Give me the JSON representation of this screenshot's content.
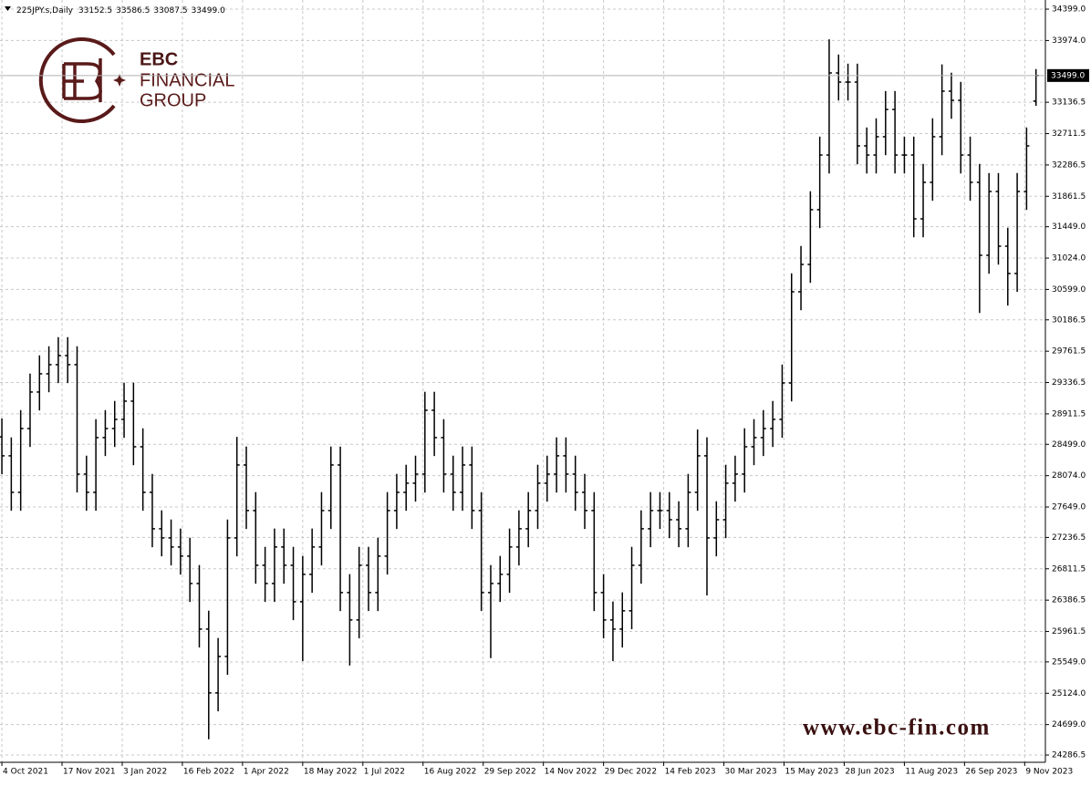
{
  "chart_data": {
    "type": "ohlc",
    "title": "225JPY.s,Daily",
    "color": "#000000",
    "grid": true,
    "x": [
      0,
      5,
      10,
      15,
      20,
      25,
      30,
      35,
      40,
      45,
      50,
      55,
      60,
      65,
      70,
      75,
      80,
      85,
      90,
      95,
      100,
      105,
      110,
      115,
      120,
      125,
      130,
      135,
      140,
      145,
      150,
      155,
      160,
      165,
      170,
      175,
      180,
      185,
      190,
      195,
      200,
      205,
      210,
      215,
      220,
      225,
      230,
      235,
      240,
      245,
      250,
      255,
      260,
      265,
      270,
      275,
      280,
      285,
      290,
      295,
      300,
      305,
      310,
      315,
      320,
      325,
      330,
      335,
      340,
      345,
      350,
      355,
      360,
      365,
      370,
      375,
      380,
      385,
      390,
      395,
      400,
      405,
      410,
      415,
      420,
      425,
      430,
      435,
      440,
      445,
      450,
      455,
      460,
      465,
      470,
      475,
      480,
      485,
      490,
      495,
      500,
      505,
      510,
      515,
      520,
      525,
      530,
      535,
      540,
      545,
      550
    ],
    "open": [
      28600,
      28343,
      27848,
      28713,
      29208,
      29455,
      29579,
      29702,
      29579,
      28095,
      27848,
      28590,
      28713,
      28837,
      29084,
      28466,
      27848,
      27354,
      27230,
      27107,
      26983,
      26612,
      25994,
      25129,
      25623,
      27230,
      28219,
      27601,
      26859,
      26612,
      27107,
      26859,
      26365,
      26736,
      27107,
      27601,
      28219,
      26489,
      26118,
      26859,
      26489,
      26983,
      27601,
      27848,
      27972,
      28095,
      28961,
      28590,
      28095,
      27848,
      28219,
      27601,
      26489,
      26612,
      26736,
      27107,
      27354,
      27601,
      27972,
      28095,
      28343,
      28095,
      27848,
      27601,
      26489,
      26118,
      25994,
      26242,
      26859,
      27354,
      27601,
      27601,
      27477,
      27354,
      27848,
      28343,
      27230,
      27477,
      27972,
      28095,
      28466,
      28590,
      28713,
      28837,
      29331,
      30567,
      30938,
      31680,
      32421,
      33534,
      33410,
      33410,
      32545,
      32421,
      32669,
      33039,
      32421,
      32421,
      31556,
      32051,
      32669,
      33287,
      33163,
      32421,
      32051,
      31062,
      31927,
      31185,
      30815,
      31927,
      33152.5
    ],
    "high": [
      28850,
      28593,
      28963,
      29458,
      29705,
      29829,
      29952,
      29952,
      29829,
      28345,
      28840,
      28963,
      29087,
      29334,
      29334,
      28716,
      28098,
      27604,
      27480,
      27357,
      27233,
      26862,
      26244,
      25873,
      27480,
      28600,
      28469,
      27851,
      27109,
      27357,
      27357,
      27109,
      26986,
      27357,
      27851,
      28469,
      28469,
      26739,
      27109,
      27109,
      27233,
      27851,
      28098,
      28222,
      28345,
      29211,
      29211,
      28840,
      28345,
      28469,
      28469,
      27851,
      26862,
      26986,
      27357,
      27604,
      27851,
      28222,
      28345,
      28593,
      28593,
      28345,
      28098,
      27851,
      26739,
      26368,
      26492,
      27109,
      27604,
      27851,
      27851,
      27851,
      27727,
      28098,
      28700,
      28593,
      27727,
      28222,
      28345,
      28716,
      28840,
      28963,
      29087,
      29581,
      30817,
      31188,
      31930,
      32671,
      33990,
      33784,
      33660,
      33660,
      32795,
      32919,
      33289,
      33289,
      32671,
      32671,
      32301,
      32919,
      33650,
      33537,
      33413,
      32671,
      32301,
      32177,
      32177,
      31435,
      32177,
      32795,
      33586.5
    ],
    "low": [
      28093,
      27598,
      27598,
      28463,
      28958,
      29205,
      29329,
      29329,
      27845,
      27598,
      27598,
      28340,
      28463,
      28587,
      28216,
      27598,
      27104,
      26980,
      26857,
      26733,
      26362,
      25744,
      24500,
      24879,
      25373,
      26980,
      27351,
      26609,
      26362,
      26362,
      26609,
      26115,
      25560,
      26486,
      26857,
      27351,
      26239,
      25500,
      25868,
      26239,
      26239,
      26733,
      27351,
      27598,
      27722,
      27845,
      28340,
      27845,
      27598,
      27598,
      27351,
      26239,
      25600,
      26362,
      26486,
      26857,
      27104,
      27351,
      27722,
      27845,
      27845,
      27598,
      27351,
      26239,
      25868,
      25560,
      25744,
      25992,
      26609,
      27104,
      27351,
      27227,
      27104,
      27104,
      27598,
      26450,
      26980,
      27227,
      27722,
      27845,
      28216,
      28340,
      28463,
      28587,
      29081,
      30317,
      30688,
      31430,
      32171,
      33160,
      33160,
      32295,
      32171,
      32171,
      32419,
      32171,
      32171,
      31306,
      31306,
      31801,
      32419,
      32913,
      32171,
      31801,
      30280,
      30812,
      30935,
      30380,
      30565,
      31677,
      33087.5
    ],
    "close": [
      28343,
      27848,
      28713,
      29208,
      29455,
      29579,
      29702,
      29579,
      28095,
      27848,
      28590,
      28713,
      28837,
      29084,
      28466,
      27848,
      27354,
      27230,
      27107,
      26983,
      26612,
      25994,
      25129,
      25623,
      27230,
      28219,
      27601,
      26859,
      26612,
      27107,
      26859,
      26365,
      26736,
      27107,
      27601,
      28219,
      26489,
      26118,
      26859,
      26489,
      26983,
      27601,
      27848,
      27972,
      28095,
      28961,
      28590,
      28095,
      27848,
      28219,
      27601,
      26489,
      26612,
      26736,
      27107,
      27354,
      27601,
      27972,
      28095,
      28343,
      28095,
      27848,
      27601,
      26489,
      26118,
      25994,
      26242,
      26859,
      27354,
      27601,
      27601,
      27477,
      27354,
      27848,
      28343,
      27230,
      27477,
      27972,
      28095,
      28466,
      28590,
      28713,
      28837,
      29331,
      30567,
      30938,
      31680,
      32421,
      33534,
      33410,
      33410,
      32545,
      32421,
      32669,
      33039,
      32421,
      32421,
      31556,
      32051,
      32669,
      33287,
      33163,
      32421,
      32051,
      31062,
      31927,
      31185,
      30815,
      31927,
      32545,
      33499
    ],
    "xlim": [
      -1,
      555
    ],
    "xticks": [
      {
        "value": 0,
        "label": "4 Oct 2021"
      },
      {
        "value": 32,
        "label": "17 Nov 2021"
      },
      {
        "value": 64,
        "label": "3 Jan 2022"
      },
      {
        "value": 96,
        "label": "16 Feb 2022"
      },
      {
        "value": 128,
        "label": "1 Apr 2022"
      },
      {
        "value": 160,
        "label": "18 May 2022"
      },
      {
        "value": 192,
        "label": "1 Jul 2022"
      },
      {
        "value": 224,
        "label": "16 Aug 2022"
      },
      {
        "value": 256,
        "label": "29 Sep 2022"
      },
      {
        "value": 288,
        "label": "14 Nov 2022"
      },
      {
        "value": 320,
        "label": "29 Dec 2022"
      },
      {
        "value": 352,
        "label": "14 Feb 2023"
      },
      {
        "value": 384,
        "label": "30 Mar 2023"
      },
      {
        "value": 416,
        "label": "15 May 2023"
      },
      {
        "value": 448,
        "label": "28 Jun 2023"
      },
      {
        "value": 480,
        "label": "11 Aug 2023"
      },
      {
        "value": 512,
        "label": "26 Sep 2023"
      },
      {
        "value": 544,
        "label": "9 Nov 2023"
      }
    ],
    "ylim": [
      24188,
      34523
    ],
    "yticks": [
      {
        "value": 34399,
        "label": "34399.0"
      },
      {
        "value": 33974,
        "label": "33974.0"
      },
      33136.5,
      32711.5,
      32286.5,
      31861.5,
      {
        "value": 31449,
        "label": "31449.0"
      },
      {
        "value": 31024,
        "label": "31024.0"
      },
      {
        "value": 30599,
        "label": "30599.0"
      },
      30186.5,
      29761.5,
      29336.5,
      28911.5,
      {
        "value": 28499,
        "label": "28499.0"
      },
      {
        "value": 28074,
        "label": "28074.0"
      },
      {
        "value": 27649,
        "label": "27649.0"
      },
      27236.5,
      26811.5,
      26386.5,
      25961.5,
      {
        "value": 25549,
        "label": "25549.0"
      },
      {
        "value": 25124,
        "label": "25124.0"
      },
      {
        "value": 24699,
        "label": "24699.0"
      },
      24286.5
    ],
    "current_price": {
      "value": 33499,
      "label": "33499.0"
    }
  },
  "branding": {
    "name": "EBC",
    "line2": "FINANCIAL",
    "line3": "GROUP",
    "watermark": "www.ebc-fin.com"
  }
}
